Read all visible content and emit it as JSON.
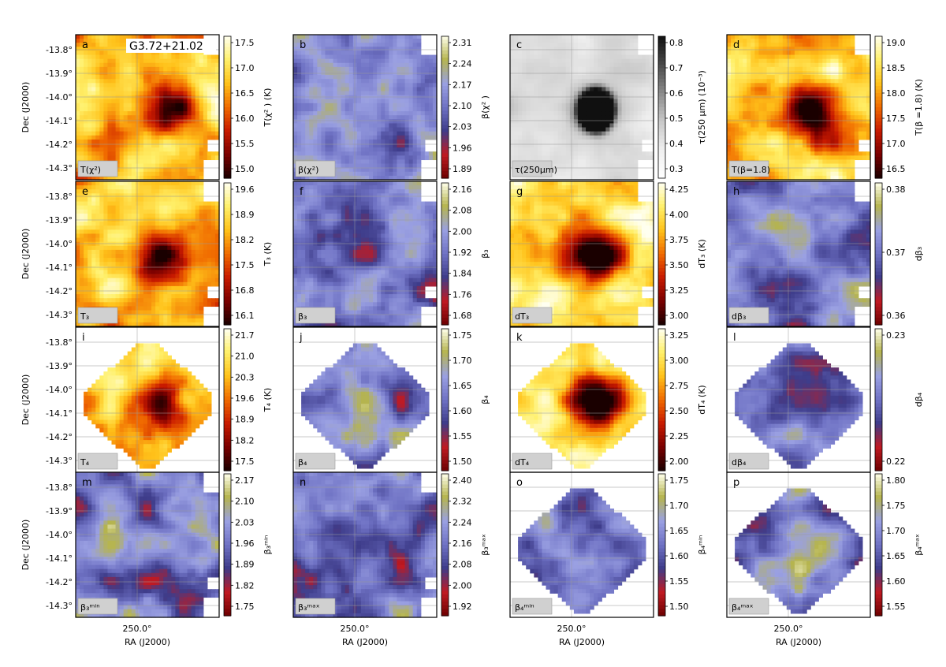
{
  "figure": {
    "source_label": "G3.72+21.02",
    "ylabel": "Dec (J2000)",
    "xlabel": "RA (J2000)",
    "ra_tick": "250.0°",
    "dec_ticks": [
      "-13.8°",
      "-13.9°",
      "-14.0°",
      "-14.1°",
      "-14.2°",
      "-14.3°"
    ]
  },
  "palette": {
    "heat": [
      "#1a0000",
      "#7a0000",
      "#c81a00",
      "#f06a00",
      "#ffc21a",
      "#fff06a",
      "#fffff0"
    ],
    "beta": [
      "#6e0000",
      "#c01a22",
      "#3e3c8a",
      "#6f72c4",
      "#9aa0e2",
      "#b5b44e",
      "#ffffea"
    ],
    "gray": [
      "#ffffff",
      "#efefef",
      "#c8c8c8",
      "#8a8a8a",
      "#4a4a4a",
      "#101010"
    ]
  },
  "chart_data": [
    {
      "panel": "a",
      "type": "heatmap",
      "label": "T(χ²)",
      "cbar_label": "T(χ² ) (K)",
      "cbar_ticks": [
        "17.5",
        "17.0",
        "16.5",
        "16.0",
        "15.5",
        "15.0"
      ],
      "cmap": "heat",
      "footprint": "full"
    },
    {
      "panel": "b",
      "type": "heatmap",
      "label": "β(χ²)",
      "cbar_label": "β(χ² )",
      "cbar_ticks": [
        "2.31",
        "2.24",
        "2.17",
        "2.10",
        "2.03",
        "1.96",
        "1.89"
      ],
      "cmap": "beta",
      "footprint": "full"
    },
    {
      "panel": "c",
      "type": "heatmap",
      "label": "τ(250μm)",
      "cbar_label": "τ(250 μm) (10⁻³)",
      "cbar_ticks": [
        "0.8",
        "0.7",
        "0.6",
        "0.5",
        "0.4",
        "0.3"
      ],
      "cmap": "gray",
      "footprint": "full"
    },
    {
      "panel": "d",
      "type": "heatmap",
      "label": "T(β=1.8)",
      "cbar_label": "T(β =1.8) (K)",
      "cbar_ticks": [
        "19.0",
        "18.5",
        "18.0",
        "17.5",
        "17.0",
        "16.5"
      ],
      "cmap": "heat",
      "footprint": "full"
    },
    {
      "panel": "e",
      "type": "heatmap",
      "label": "T₃",
      "cbar_label": "T₃ (K)",
      "cbar_ticks": [
        "19.6",
        "18.9",
        "18.2",
        "17.5",
        "16.8",
        "16.1"
      ],
      "cmap": "heat",
      "footprint": "full"
    },
    {
      "panel": "f",
      "type": "heatmap",
      "label": "β₃",
      "cbar_label": "β₃",
      "cbar_ticks": [
        "2.16",
        "2.08",
        "2.00",
        "1.92",
        "1.84",
        "1.76",
        "1.68"
      ],
      "cmap": "beta",
      "footprint": "full"
    },
    {
      "panel": "g",
      "type": "heatmap",
      "label": "dT₃",
      "cbar_label": "dT₃ (K)",
      "cbar_ticks": [
        "4.25",
        "4.00",
        "3.75",
        "3.50",
        "3.25",
        "3.00"
      ],
      "cmap": "heat",
      "footprint": "full"
    },
    {
      "panel": "h",
      "type": "heatmap",
      "label": "dβ₃",
      "cbar_label": "dβ₃",
      "cbar_ticks": [
        "0.38",
        "0.37",
        "0.36"
      ],
      "cmap": "beta",
      "footprint": "full"
    },
    {
      "panel": "i",
      "type": "heatmap",
      "label": "T₄",
      "cbar_label": "T₄ (K)",
      "cbar_ticks": [
        "21.7",
        "21.0",
        "20.3",
        "19.6",
        "18.9",
        "18.2",
        "17.5"
      ],
      "cmap": "heat",
      "footprint": "small"
    },
    {
      "panel": "j",
      "type": "heatmap",
      "label": "β₄",
      "cbar_label": "β₄",
      "cbar_ticks": [
        "1.75",
        "1.70",
        "1.65",
        "1.60",
        "1.55",
        "1.50"
      ],
      "cmap": "beta",
      "footprint": "small"
    },
    {
      "panel": "k",
      "type": "heatmap",
      "label": "dT₄",
      "cbar_label": "dT₄ (K)",
      "cbar_ticks": [
        "3.25",
        "3.00",
        "2.75",
        "2.50",
        "2.25",
        "2.00"
      ],
      "cmap": "heat",
      "footprint": "small"
    },
    {
      "panel": "l",
      "type": "heatmap",
      "label": "dβ₄",
      "cbar_label": "dβ₄",
      "cbar_ticks": [
        "0.23",
        "0.22"
      ],
      "cmap": "beta",
      "footprint": "small"
    },
    {
      "panel": "m",
      "type": "heatmap",
      "label": "β₃ᵐⁱⁿ",
      "cbar_label": "β₃ᵐⁱⁿ",
      "cbar_ticks": [
        "2.17",
        "2.10",
        "2.03",
        "1.96",
        "1.89",
        "1.82",
        "1.75"
      ],
      "cmap": "beta",
      "footprint": "full"
    },
    {
      "panel": "n",
      "type": "heatmap",
      "label": "β₃ᵐᵃˣ",
      "cbar_label": "β₃ᵐᵃˣ",
      "cbar_ticks": [
        "2.40",
        "2.32",
        "2.24",
        "2.16",
        "2.08",
        "2.00",
        "1.92"
      ],
      "cmap": "beta",
      "footprint": "full"
    },
    {
      "panel": "o",
      "type": "heatmap",
      "label": "β₄ᵐⁱⁿ",
      "cbar_label": "β₄ᵐⁱⁿ",
      "cbar_ticks": [
        "1.75",
        "1.70",
        "1.65",
        "1.60",
        "1.55",
        "1.50"
      ],
      "cmap": "beta",
      "footprint": "small"
    },
    {
      "panel": "p",
      "type": "heatmap",
      "label": "β₄ᵐᵃˣ",
      "cbar_label": "β₄ᵐᵃˣ",
      "cbar_ticks": [
        "1.80",
        "1.75",
        "1.70",
        "1.65",
        "1.60",
        "1.55"
      ],
      "cmap": "beta",
      "footprint": "small"
    }
  ]
}
